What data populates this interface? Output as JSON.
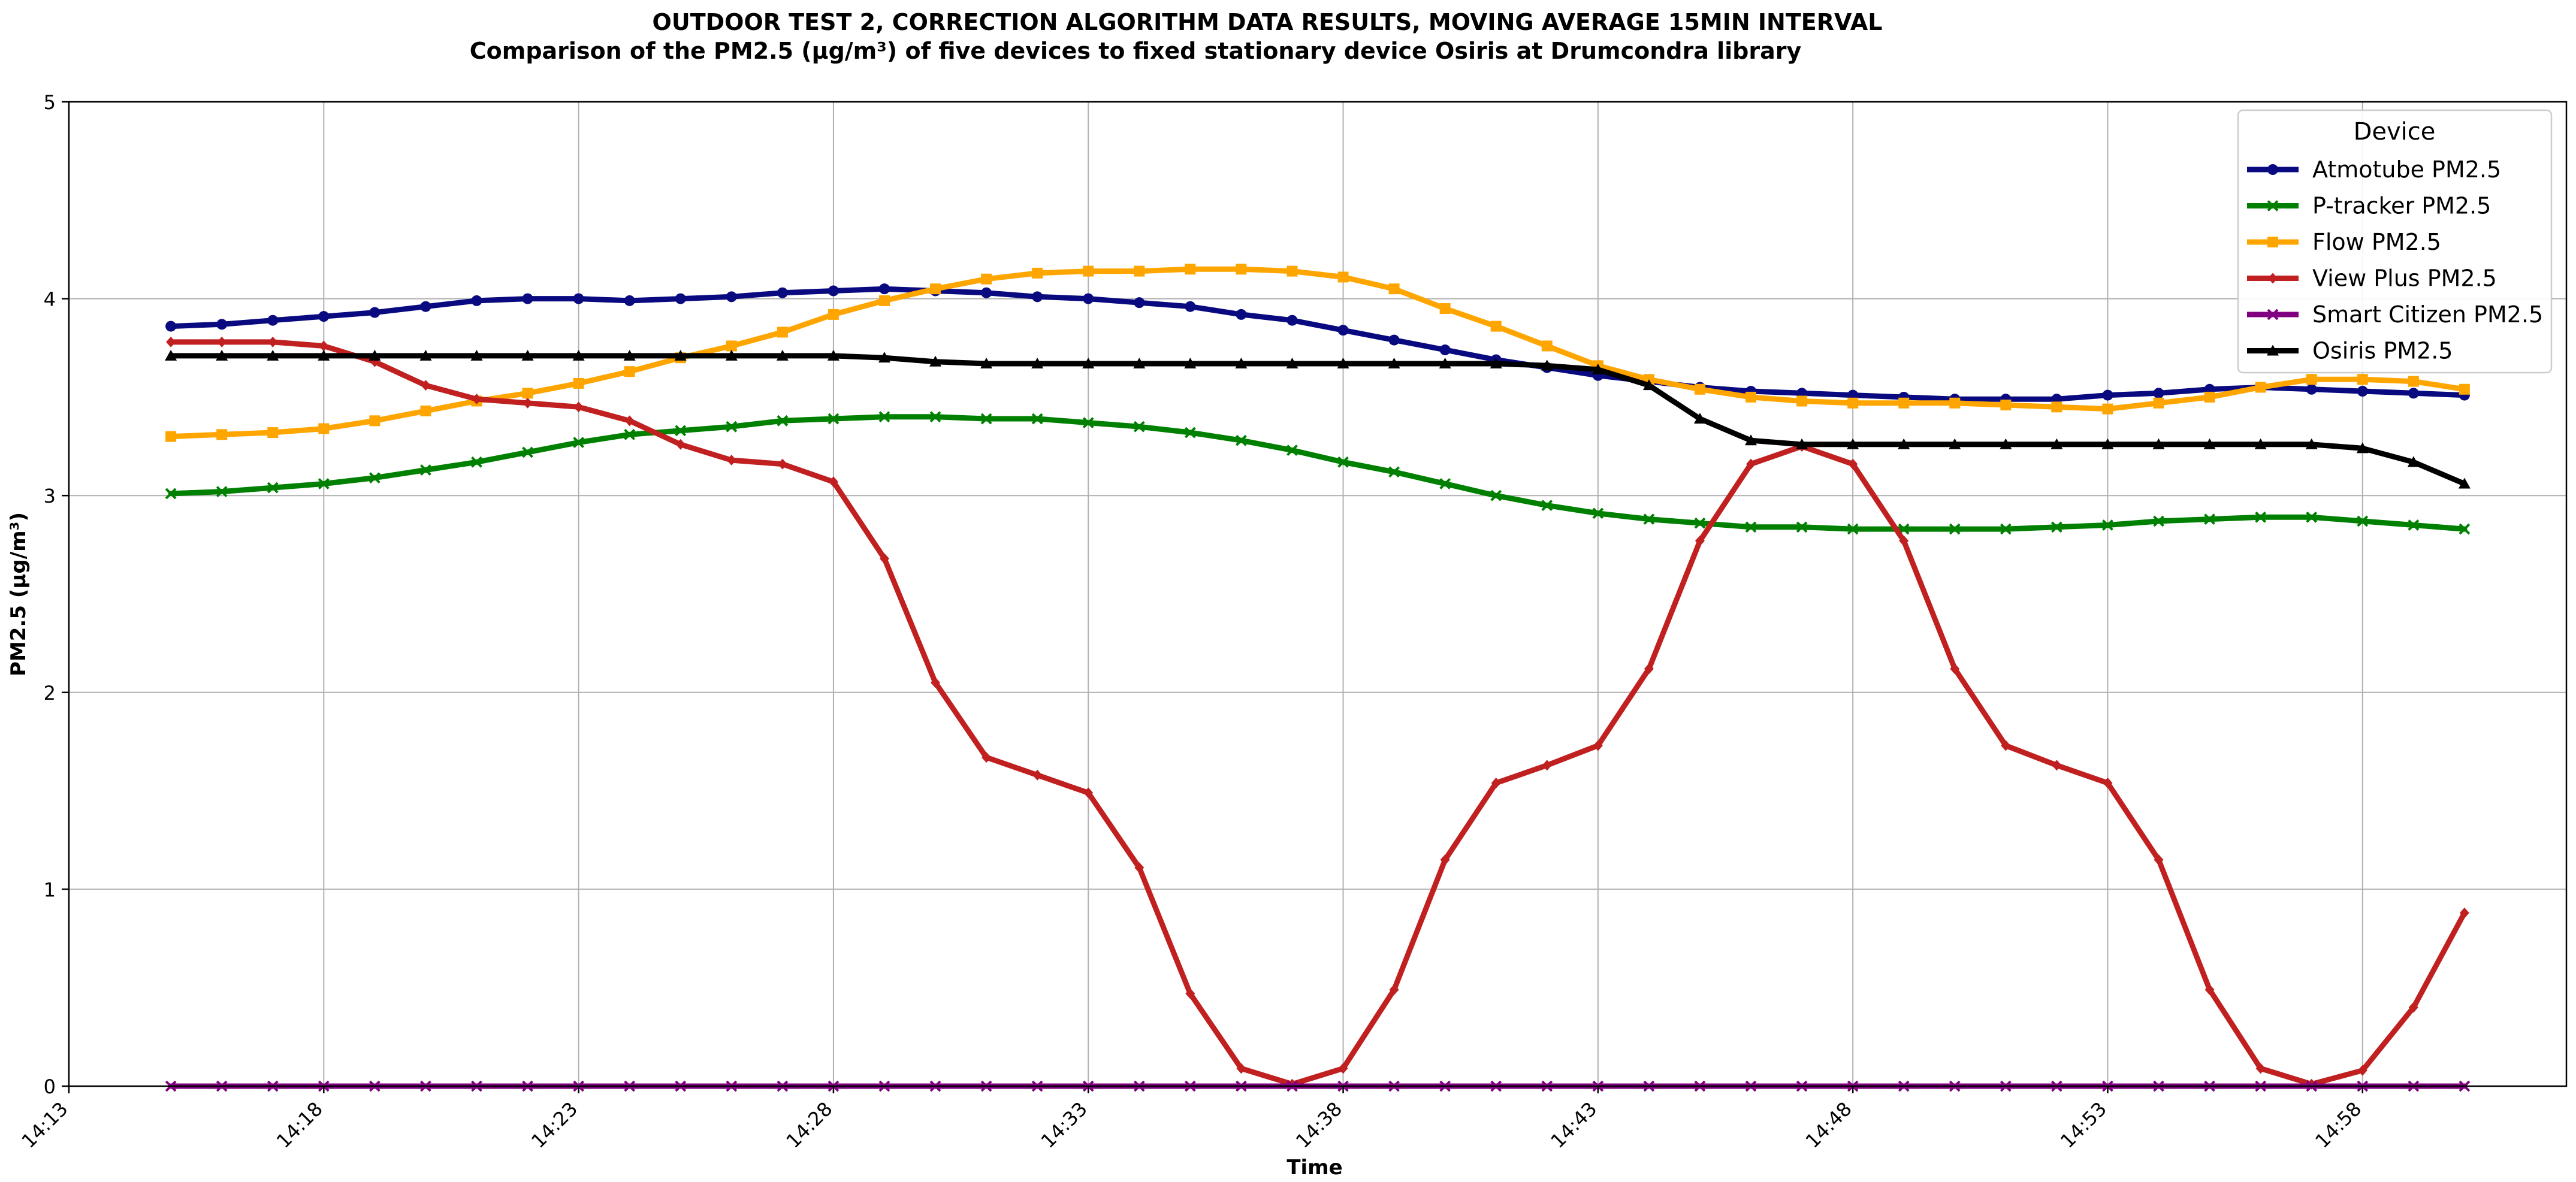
{
  "chart_data": {
    "type": "line",
    "title": "OUTDOOR TEST 2, CORRECTION ALGORITHM DATA RESULTS, MOVING AVERAGE 15MIN INTERVAL",
    "subtitle": "Comparison of the PM2.5 (µg/m³) of five devices to fixed stationary device Osiris at Drumcondra library",
    "xlabel": "Time",
    "ylabel": "PM2.5 (µg/m³)",
    "x_ticks": [
      "14:13",
      "14:18",
      "14:23",
      "14:28",
      "14:33",
      "14:38",
      "14:43",
      "14:48",
      "14:53",
      "14:58"
    ],
    "y_ticks": [
      0,
      1,
      2,
      3,
      4,
      5
    ],
    "xlim": [
      "14:13",
      "15:02"
    ],
    "ylim": [
      0,
      5
    ],
    "grid": true,
    "legend": {
      "title": "Device",
      "position": "top-right"
    },
    "x": [
      "14:15",
      "14:16",
      "14:17",
      "14:18",
      "14:19",
      "14:20",
      "14:21",
      "14:22",
      "14:23",
      "14:24",
      "14:25",
      "14:26",
      "14:27",
      "14:28",
      "14:29",
      "14:30",
      "14:31",
      "14:32",
      "14:33",
      "14:34",
      "14:35",
      "14:36",
      "14:37",
      "14:38",
      "14:39",
      "14:40",
      "14:41",
      "14:42",
      "14:43",
      "14:44",
      "14:45",
      "14:46",
      "14:47",
      "14:48",
      "14:49",
      "14:50",
      "14:51",
      "14:52",
      "14:53",
      "14:54",
      "14:55",
      "14:56",
      "14:57",
      "14:58",
      "14:59",
      "15:00"
    ],
    "series": [
      {
        "name": "Atmotube PM2.5",
        "color": "#0a0a80",
        "marker": "circle",
        "values": [
          3.86,
          3.87,
          3.89,
          3.91,
          3.93,
          3.96,
          3.99,
          4.0,
          4.0,
          3.99,
          4.0,
          4.01,
          4.03,
          4.04,
          4.05,
          4.04,
          4.03,
          4.01,
          4.0,
          3.98,
          3.96,
          3.92,
          3.89,
          3.84,
          3.79,
          3.74,
          3.69,
          3.65,
          3.61,
          3.58,
          3.55,
          3.53,
          3.52,
          3.51,
          3.5,
          3.49,
          3.49,
          3.49,
          3.51,
          3.52,
          3.54,
          3.55,
          3.54,
          3.53,
          3.52,
          3.51
        ]
      },
      {
        "name": "P-tracker PM2.5",
        "color": "#008000",
        "marker": "x",
        "values": [
          3.01,
          3.02,
          3.04,
          3.06,
          3.09,
          3.13,
          3.17,
          3.22,
          3.27,
          3.31,
          3.33,
          3.35,
          3.38,
          3.39,
          3.4,
          3.4,
          3.39,
          3.39,
          3.37,
          3.35,
          3.32,
          3.28,
          3.23,
          3.17,
          3.12,
          3.06,
          3.0,
          2.95,
          2.91,
          2.88,
          2.86,
          2.84,
          2.84,
          2.83,
          2.83,
          2.83,
          2.83,
          2.84,
          2.85,
          2.87,
          2.88,
          2.89,
          2.89,
          2.87,
          2.85,
          2.83
        ]
      },
      {
        "name": "Flow PM2.5",
        "color": "#ffa500",
        "marker": "square",
        "values": [
          3.3,
          3.31,
          3.32,
          3.34,
          3.38,
          3.43,
          3.48,
          3.52,
          3.57,
          3.63,
          3.7,
          3.76,
          3.83,
          3.92,
          3.99,
          4.05,
          4.1,
          4.13,
          4.14,
          4.14,
          4.15,
          4.15,
          4.14,
          4.11,
          4.05,
          3.95,
          3.86,
          3.76,
          3.66,
          3.59,
          3.54,
          3.5,
          3.48,
          3.47,
          3.47,
          3.47,
          3.46,
          3.45,
          3.44,
          3.47,
          3.5,
          3.55,
          3.59,
          3.59,
          3.58,
          3.54
        ]
      },
      {
        "name": "View Plus PM2.5",
        "color": "#c02020",
        "marker": "diamond",
        "values": [
          3.78,
          3.78,
          3.78,
          3.76,
          3.68,
          3.56,
          3.49,
          3.47,
          3.45,
          3.38,
          3.26,
          3.18,
          3.16,
          3.07,
          2.68,
          2.05,
          1.67,
          1.58,
          1.49,
          1.11,
          0.47,
          0.09,
          0.01,
          0.09,
          0.49,
          1.15,
          1.54,
          1.63,
          1.73,
          2.12,
          2.77,
          3.16,
          3.25,
          3.16,
          2.77,
          2.12,
          1.73,
          1.63,
          1.54,
          1.15,
          0.49,
          0.09,
          0.01,
          0.08,
          0.4,
          0.88
        ]
      },
      {
        "name": "Smart Citizen PM2.5",
        "color": "#800080",
        "marker": "x",
        "values": [
          0,
          0,
          0,
          0,
          0,
          0,
          0,
          0,
          0,
          0,
          0,
          0,
          0,
          0,
          0,
          0,
          0,
          0,
          0,
          0,
          0,
          0,
          0,
          0,
          0,
          0,
          0,
          0,
          0,
          0,
          0,
          0,
          0,
          0,
          0,
          0,
          0,
          0,
          0,
          0,
          0,
          0,
          0,
          0,
          0,
          0
        ]
      },
      {
        "name": "Osiris PM2.5",
        "color": "#000000",
        "marker": "triangle",
        "values": [
          3.71,
          3.71,
          3.71,
          3.71,
          3.71,
          3.71,
          3.71,
          3.71,
          3.71,
          3.71,
          3.71,
          3.71,
          3.71,
          3.71,
          3.7,
          3.68,
          3.67,
          3.67,
          3.67,
          3.67,
          3.67,
          3.67,
          3.67,
          3.67,
          3.67,
          3.67,
          3.67,
          3.66,
          3.64,
          3.56,
          3.39,
          3.28,
          3.26,
          3.26,
          3.26,
          3.26,
          3.26,
          3.26,
          3.26,
          3.26,
          3.26,
          3.26,
          3.26,
          3.24,
          3.17,
          3.06
        ]
      }
    ]
  }
}
